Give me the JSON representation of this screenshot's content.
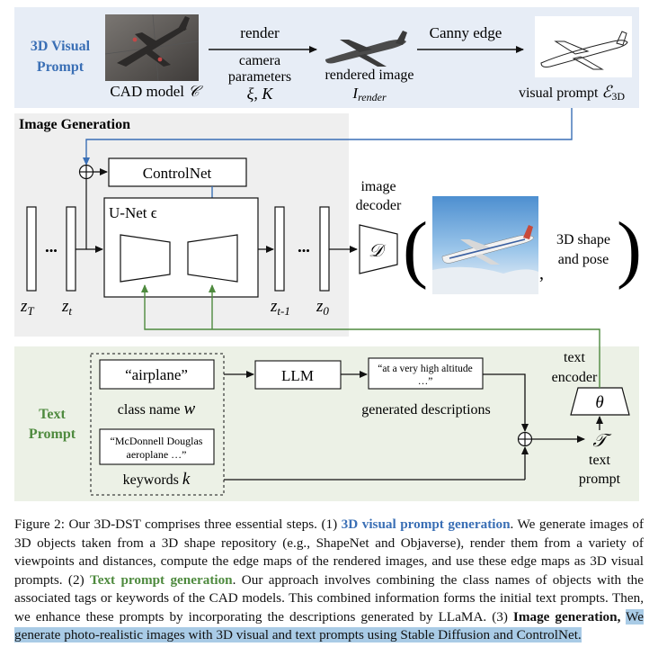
{
  "visual_prompt": {
    "title": "3D Visual Prompt",
    "cad_label": "CAD model",
    "cad_symbol": "𝒞",
    "render_label": "render",
    "camera_label": "camera parameters",
    "camera_symbols": "ξ, K",
    "rendered_label": "rendered image",
    "rendered_symbol": "I",
    "rendered_sub": "render",
    "canny_label": "Canny edge",
    "vp_label": "visual prompt",
    "vp_symbol": "ℰ",
    "vp_sub": "3D"
  },
  "image_generation": {
    "title": "Image Generation",
    "controlnet": "ControlNet",
    "unet": "U-Net ϵ",
    "zT": "z",
    "zT_sub": "T",
    "zt": "z",
    "zt_sub": "t",
    "zt1": "z",
    "zt1_sub": "t-1",
    "z0": "z",
    "z0_sub": "0",
    "dots": "•••",
    "decoder_label": "image decoder",
    "decoder_symbol": "𝒟",
    "output_label": "3D shape and pose",
    "comma": ","
  },
  "text_prompt": {
    "title": "Text Prompt",
    "airplane": "“airplane”",
    "class_name": "class name",
    "class_symbol": "w",
    "keywords_box": "“McDonnell Douglas aeroplane …”",
    "keywords": "keywords",
    "keywords_symbol": "k",
    "llm": "LLM",
    "gen_box": "“at a very high altitude …”",
    "gen_label": "generated descriptions",
    "encoder_label": "text encoder",
    "theta": "θ",
    "text_prompt_symbol": "𝒯",
    "text_prompt_label": "text prompt"
  },
  "caption": {
    "p1": "Figure 2: Our 3D-DST comprises three essential steps. (1) ",
    "b1": "3D visual prompt generation",
    "p2": ". We generate images of 3D objects taken from a 3D shape repository (e.g., ShapeNet and Objaverse), render them from a variety of viewpoints and distances, compute the edge maps of the rendered images, and use these edge maps as 3D visual prompts. (2) ",
    "b2": "Text prompt generation",
    "p3": ". Our approach involves combining the class names of objects with the associated tags or keywords of the CAD models. This combined information forms the initial text prompts. Then, we enhance these prompts by incorporating the descriptions generated by LLaMA. (3) ",
    "b3": "Image generation,",
    "p4": " ",
    "hl": "We generate photo-realistic images with 3D visual and text prompts using Stable Diffusion and ControlNet."
  },
  "colors": {
    "visual_panel": "#e7edf6",
    "image_panel": "#efefef",
    "text_panel": "#ecf1e6",
    "blue": "#3a6fb5",
    "green": "#4e8a3e",
    "highlight": "#a9cbe6"
  }
}
